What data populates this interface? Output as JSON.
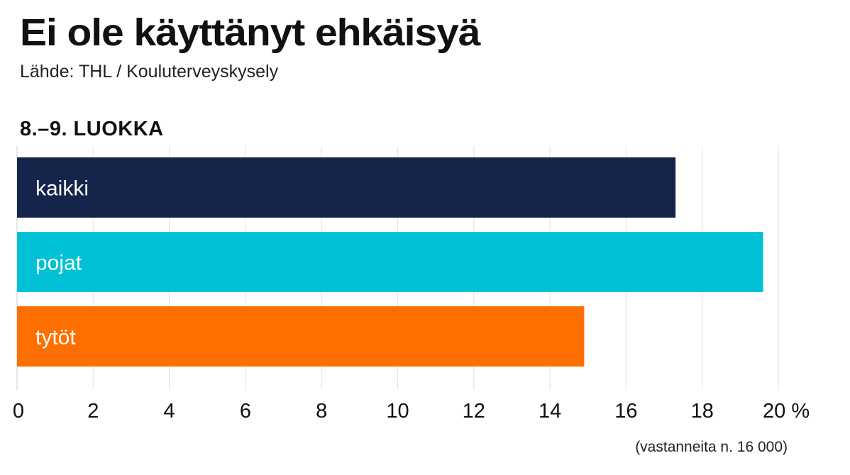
{
  "header": {
    "title": "Ei ole käyttänyt ehkäisyä",
    "subtitle": "Lähde: THL / Kouluterveyskysely"
  },
  "section_label": "8.–9. LUOKKA",
  "note": "(vastanneita n. 16 000)",
  "chart_data": {
    "type": "bar",
    "orientation": "horizontal",
    "title": "Ei ole käyttänyt ehkäisyä",
    "subtitle": "Lähde: THL / Kouluterveyskysely",
    "categories": [
      "kaikki",
      "pojat",
      "tytöt"
    ],
    "values": [
      17.3,
      19.6,
      14.9
    ],
    "colors": [
      "#15244a",
      "#00c1d6",
      "#ff6f00"
    ],
    "xlim": [
      0,
      20
    ],
    "x_ticks": [
      "0",
      "2",
      "4",
      "6",
      "8",
      "10",
      "12",
      "14",
      "16",
      "18",
      "20 %"
    ],
    "unit": "%",
    "grid": true
  }
}
